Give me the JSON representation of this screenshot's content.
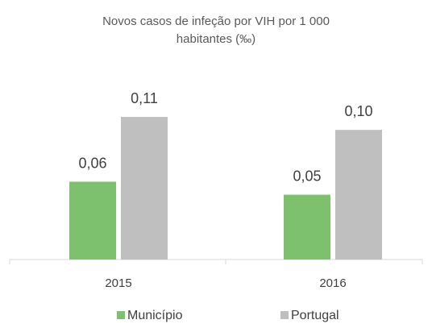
{
  "chart_data": {
    "type": "bar",
    "title": "Novos casos de infeção por VIH por 1 000 habitantes (‰)",
    "categories": [
      "2015",
      "2016"
    ],
    "series": [
      {
        "name": "Município",
        "color": "#7dc16f",
        "values": [
          0.06,
          0.05
        ],
        "value_labels": [
          "0,06",
          "0,05"
        ]
      },
      {
        "name": "Portugal",
        "color": "#bfbfbf",
        "values": [
          0.11,
          0.1
        ],
        "value_labels": [
          "0,11",
          "0,10"
        ]
      }
    ],
    "ylim": [
      0,
      0.12
    ],
    "legend": "bottom"
  }
}
